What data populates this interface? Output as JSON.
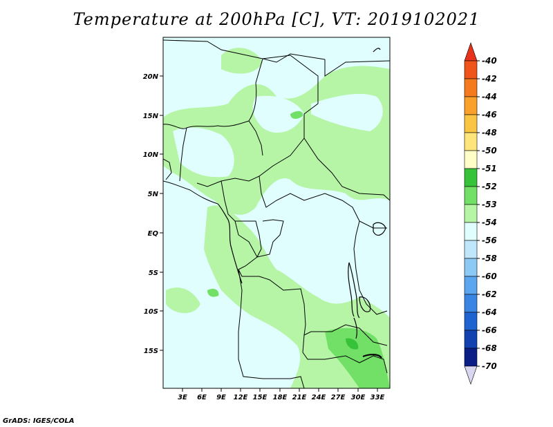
{
  "title": "Temperature at 200hPa [C], VT: 2019102021",
  "credit": "GrADS: IGES/COLA",
  "lat_labels": [
    "20N",
    "15N",
    "10N",
    "5N",
    "EQ",
    "5S",
    "10S",
    "15S"
  ],
  "lon_labels": [
    "3E",
    "6E",
    "9E",
    "12E",
    "15E",
    "18E",
    "21E",
    "24E",
    "27E",
    "30E",
    "33E"
  ],
  "colorbar": {
    "labels": [
      "-40",
      "-42",
      "-44",
      "-46",
      "-48",
      "-50",
      "-51",
      "-52",
      "-53",
      "-54",
      "-56",
      "-58",
      "-60",
      "-62",
      "-64",
      "-66",
      "-68",
      "-70"
    ],
    "colors": [
      "#e8331c",
      "#f0541a",
      "#f57a1d",
      "#f9a12a",
      "#fbc544",
      "#fde57c",
      "#fffec8",
      "#36c239",
      "#72e066",
      "#b6f5a6",
      "#e0fefe",
      "#bfe6fb",
      "#8dc9f5",
      "#5ba6ef",
      "#3a85e3",
      "#1f63d1",
      "#1342b0",
      "#0a1e86",
      "#d9d7f0"
    ]
  }
}
